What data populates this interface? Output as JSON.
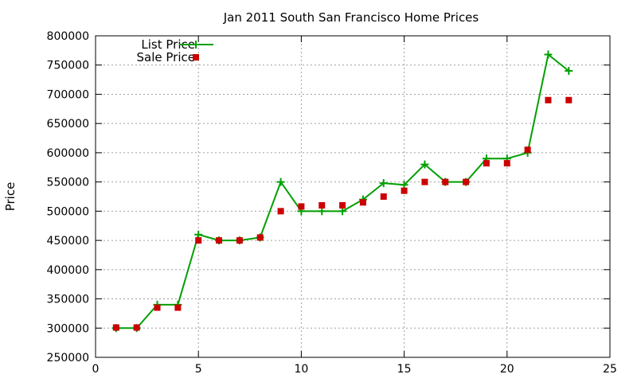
{
  "chart_data": {
    "type": "line",
    "title": "Jan 2011 South San Francisco Home Prices",
    "xlabel": "",
    "ylabel": "Price",
    "xlim": [
      0,
      25
    ],
    "ylim": [
      250000,
      800000
    ],
    "xticks": [
      0,
      5,
      10,
      15,
      20,
      25
    ],
    "yticks": [
      250000,
      300000,
      350000,
      400000,
      450000,
      500000,
      550000,
      600000,
      650000,
      700000,
      750000,
      800000
    ],
    "grid": true,
    "legend_position": "top-left",
    "series": [
      {
        "name": "List Price",
        "style": "line+plus-markers",
        "color": "#00a000",
        "x": [
          1,
          2,
          3,
          4,
          5,
          6,
          7,
          8,
          9,
          10,
          11,
          12,
          13,
          14,
          15,
          16,
          17,
          18,
          19,
          20,
          21,
          22,
          23
        ],
        "values": [
          300000,
          300000,
          340000,
          340000,
          460000,
          450000,
          450000,
          455000,
          550000,
          500000,
          500000,
          500000,
          520000,
          548000,
          545000,
          580000,
          550000,
          550000,
          590000,
          590000,
          600000,
          768000,
          740000
        ]
      },
      {
        "name": "Sale Price",
        "style": "square-points",
        "color": "#cc0000",
        "x": [
          1,
          2,
          3,
          4,
          5,
          6,
          7,
          8,
          9,
          10,
          11,
          12,
          13,
          14,
          15,
          16,
          17,
          18,
          19,
          20,
          21,
          22,
          23
        ],
        "values": [
          301000,
          301000,
          335000,
          335000,
          450000,
          450000,
          450000,
          455000,
          500000,
          508000,
          510000,
          510000,
          515000,
          525000,
          535000,
          550000,
          550000,
          550000,
          582000,
          582000,
          605000,
          690000,
          690000
        ]
      }
    ]
  }
}
